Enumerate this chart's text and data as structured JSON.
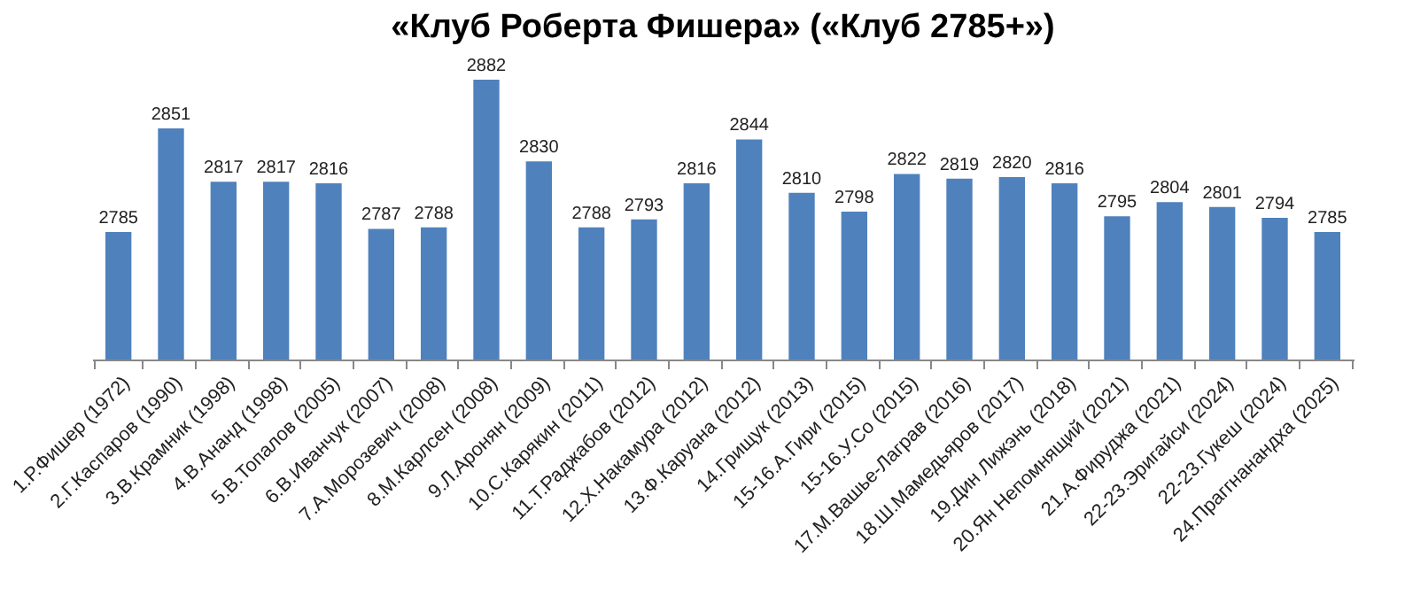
{
  "chart_data": {
    "type": "bar",
    "title": "«Клуб Роберта Фишера»    («Клуб 2785+»)",
    "categories": [
      "1.Р.Фишер (1972)",
      "2.Г.Каспаров (1990)",
      "3.В.Крамник (1998)",
      "4.В.Ананд (1998)",
      "5.В.Топалов (2005)",
      "6.В.Иванчук  (2007)",
      "7.А.Морозевич (2008)",
      "8.М.Карлсен (2008)",
      "9.Л.Аронян (2009)",
      "10.С.Карякин  (2011)",
      "11.Т.Раджабов  (2012)",
      "12.Х.Накамура (2012)",
      "13.Ф.Каруана (2012)",
      "14.Грищук (2013)",
      "15-16.А.Гири (2015)",
      "15-16.У.Со (2015)",
      "17.М.Вашье-Лаграв (2016)",
      "18.Ш.Мамедьяров (2017)",
      "19.Дин Лижэнь (2018)",
      "20.Ян Непомнящий (2021)",
      "21.А.Фируджа (2021)",
      "22-23.Эригайси (2024)",
      "22-23.Гукеш (2024)",
      "24.Праггнанандха (2025)"
    ],
    "values": [
      2785,
      2851,
      2817,
      2817,
      2816,
      2787,
      2788,
      2882,
      2830,
      2788,
      2793,
      2816,
      2844,
      2810,
      2798,
      2822,
      2819,
      2820,
      2816,
      2795,
      2804,
      2801,
      2794,
      2785
    ],
    "color": "#4f81bd",
    "data_labels": true,
    "tick_labels": "x",
    "grid": false
  }
}
